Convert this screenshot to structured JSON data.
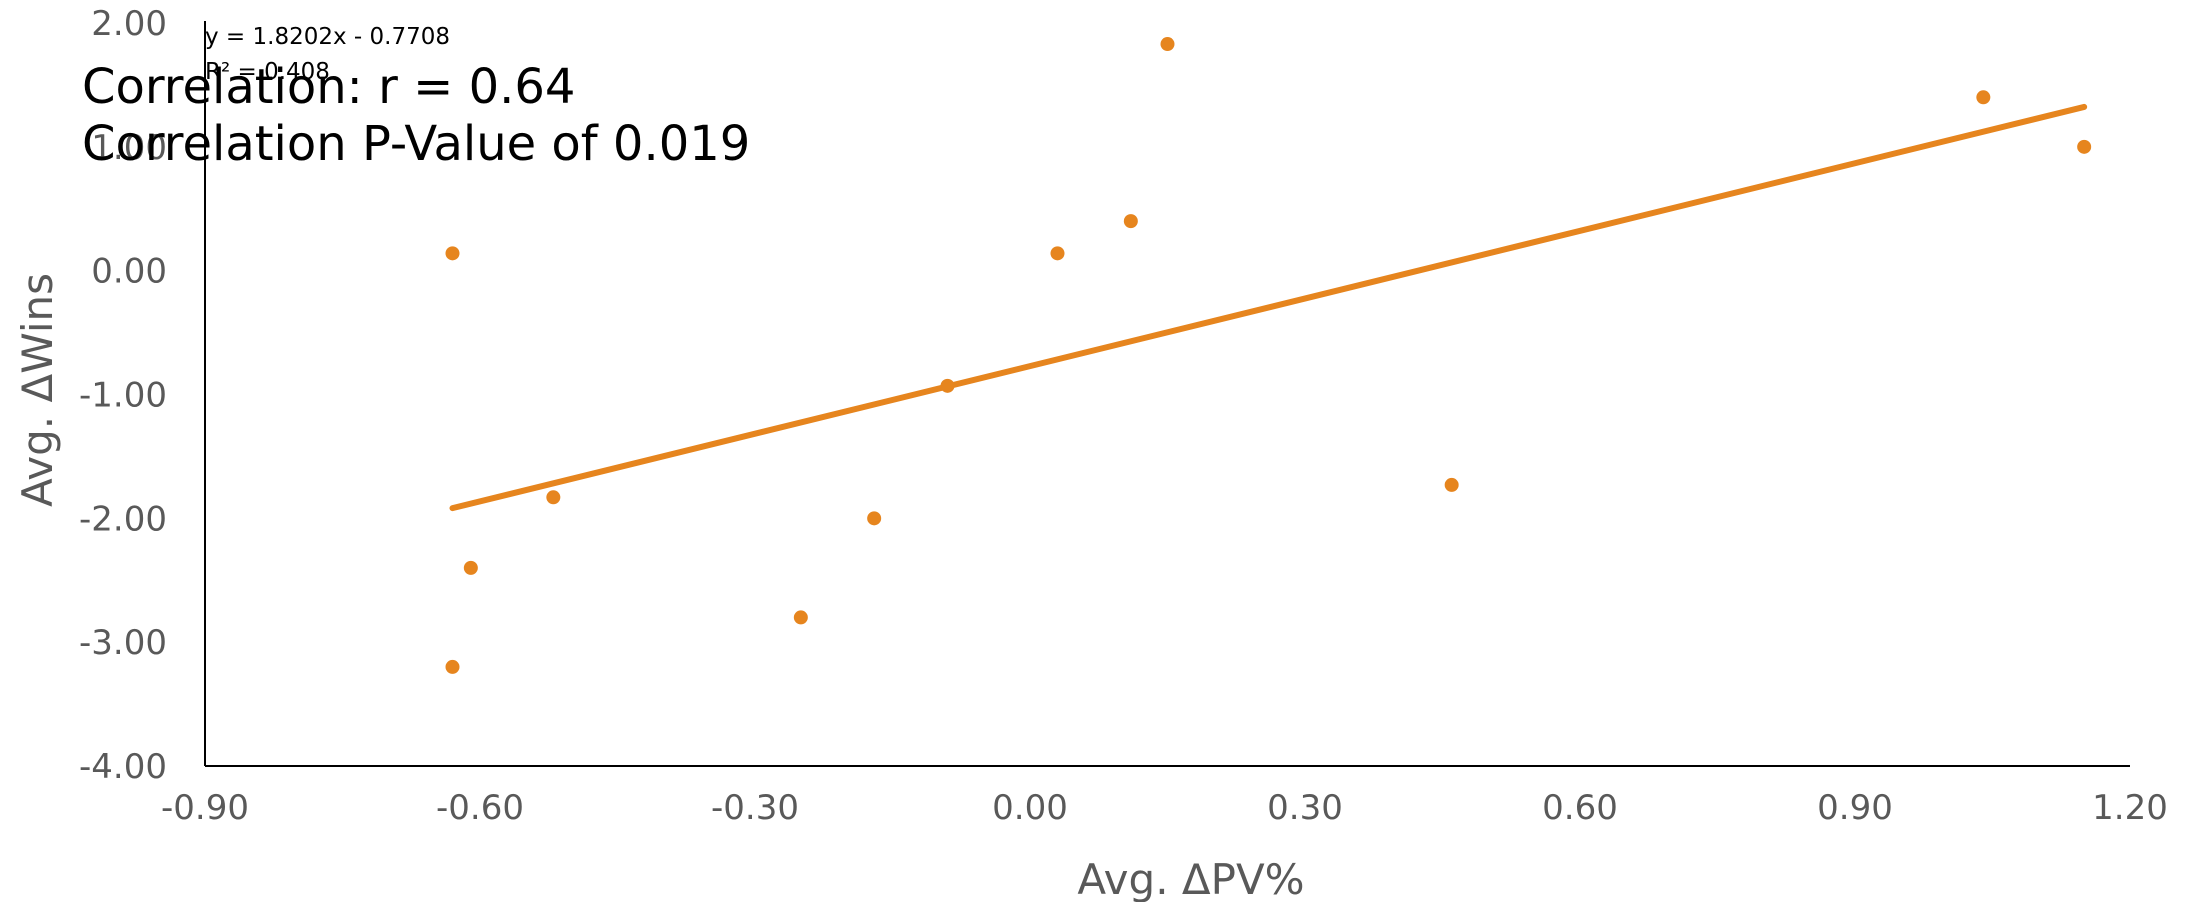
{
  "chart_data": {
    "type": "scatter",
    "xlabel": "Avg. ΔPV%",
    "ylabel": "Avg. ΔWins",
    "xlim": [
      -0.9,
      1.2
    ],
    "ylim": [
      -4.0,
      2.0
    ],
    "x_ticks": [
      "-0.90",
      "-0.60",
      "-0.30",
      "0.00",
      "0.30",
      "0.60",
      "0.90",
      "1.20"
    ],
    "y_ticks": [
      "2.00",
      "1.00",
      "0.00",
      "-1.00",
      "-2.00",
      "-3.00",
      "-4.00"
    ],
    "series": [
      {
        "points": [
          {
            "x": -0.63,
            "y": 0.14
          },
          {
            "x": -0.63,
            "y": -3.2
          },
          {
            "x": -0.61,
            "y": -2.4
          },
          {
            "x": -0.52,
            "y": -1.83
          },
          {
            "x": -0.25,
            "y": -2.8
          },
          {
            "x": -0.17,
            "y": -2.0
          },
          {
            "x": -0.09,
            "y": -0.93
          },
          {
            "x": 0.03,
            "y": 0.14
          },
          {
            "x": 0.11,
            "y": 0.4
          },
          {
            "x": 0.15,
            "y": 1.83
          },
          {
            "x": 0.46,
            "y": -1.73
          },
          {
            "x": 1.04,
            "y": 1.4
          },
          {
            "x": 1.15,
            "y": 1.0
          }
        ]
      }
    ],
    "trendline": {
      "slope": 1.8202,
      "intercept": -0.7708,
      "x_range": [
        -0.63,
        1.15
      ]
    },
    "equation_text": "y = 1.8202x - 0.7708",
    "r2_text": "R² = 0.408",
    "annotations": [
      "Correlation: r = 0.64",
      "Correlation P-Value of 0.019"
    ],
    "grid": false,
    "legend": "none",
    "color": "#E6851E"
  }
}
